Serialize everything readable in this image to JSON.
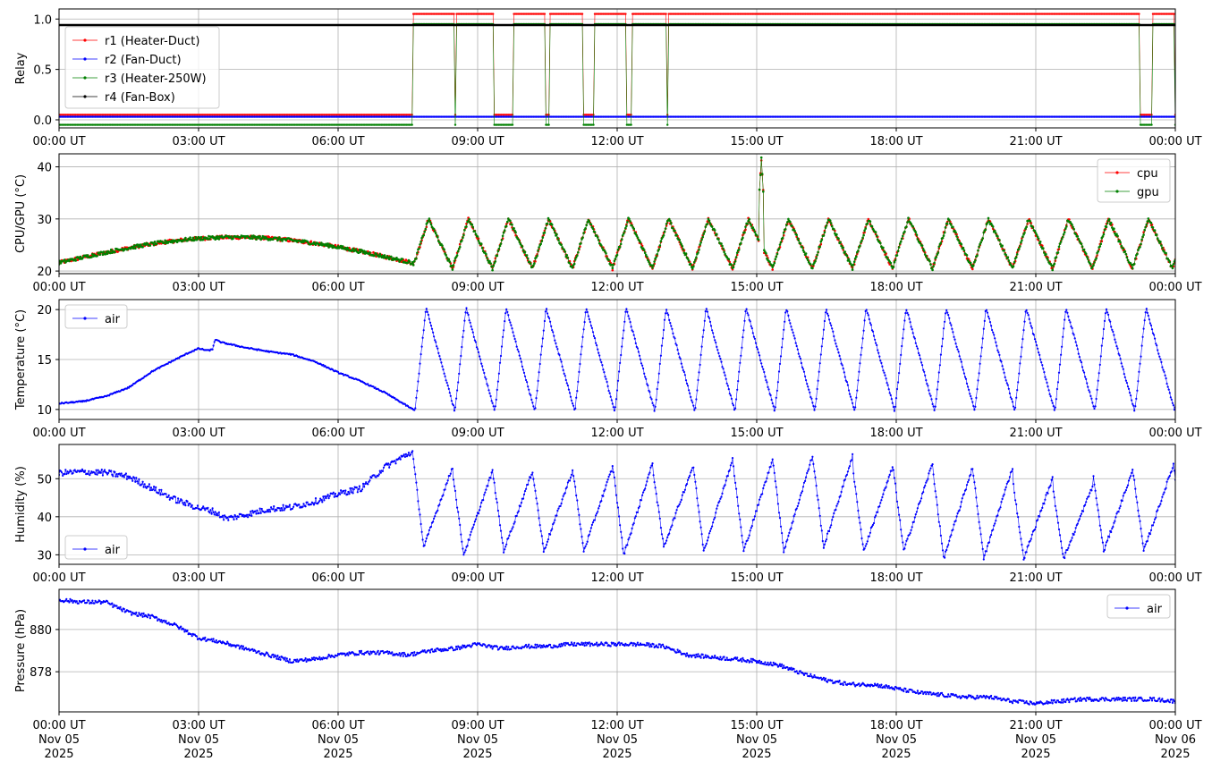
{
  "chart_data": [
    {
      "type": "line",
      "ylabel": "Relay",
      "ylim": [
        -0.08,
        1.1
      ],
      "yticks": [
        0.0,
        0.5,
        1.0
      ],
      "ytick_labels": [
        "0.0",
        "0.5",
        "1.0"
      ],
      "x_range_hours": [
        0,
        24
      ],
      "xtick_labels": [
        "00:00 UT",
        "03:00 UT",
        "06:00 UT",
        "09:00 UT",
        "12:00 UT",
        "15:00 UT",
        "18:00 UT",
        "21:00 UT",
        "00:00 UT"
      ],
      "grid": true,
      "legend_position": "upper-left",
      "relay_on_off_cycles_hours": [
        [
          7.6,
          8.5
        ],
        [
          8.55,
          9.35
        ],
        [
          9.75,
          10.45
        ],
        [
          10.55,
          11.25
        ],
        [
          11.5,
          12.2
        ],
        [
          12.3,
          13.05
        ],
        [
          13.1,
          13.95
        ],
        [
          13.95,
          14.8
        ],
        [
          14.8,
          15.6
        ],
        [
          15.6,
          16.45
        ],
        [
          16.45,
          17.3
        ],
        [
          17.3,
          18.15
        ],
        [
          18.15,
          19.05
        ],
        [
          19.05,
          19.95
        ],
        [
          19.95,
          20.85
        ],
        [
          20.85,
          21.7
        ],
        [
          21.7,
          22.5
        ],
        [
          22.5,
          23.25
        ],
        [
          23.5,
          24.0
        ]
      ],
      "series": [
        {
          "name": "r1 (Heater-Duct)",
          "color": "#ff0000",
          "off_value": 0.05,
          "on_value": 1.05
        },
        {
          "name": "r2 (Fan-Duct)",
          "color": "#0000ff",
          "off_value": 0.03,
          "on_value": 0.03
        },
        {
          "name": "r3 (Heater-250W)",
          "color": "#008000",
          "off_value": -0.05,
          "on_value": 0.95
        },
        {
          "name": "r4 (Fan-Box)",
          "color": "#000000",
          "off_value": 0.94,
          "on_value": 0.94
        }
      ]
    },
    {
      "type": "line",
      "ylabel": "CPU/GPU (°C)",
      "ylim": [
        19.5,
        42.5
      ],
      "yticks": [
        20,
        30,
        40
      ],
      "ytick_labels": [
        "20",
        "30",
        "40"
      ],
      "x_range_hours": [
        0,
        24
      ],
      "xtick_labels": [
        "00:00 UT",
        "03:00 UT",
        "06:00 UT",
        "09:00 UT",
        "12:00 UT",
        "15:00 UT",
        "18:00 UT",
        "21:00 UT",
        "00:00 UT"
      ],
      "grid": true,
      "legend_position": "upper-right",
      "series": [
        {
          "name": "cpu",
          "color": "#ff0000"
        },
        {
          "name": "gpu",
          "color": "#008000"
        }
      ],
      "profile": {
        "night_start": 21.6,
        "night_peak": 26.5,
        "night_peak_hour": 3.5,
        "night_end": 21.5,
        "cycle_min": 20.5,
        "cycle_max": 30.0,
        "spike_hour": 15.1,
        "spike_value": 41.5
      }
    },
    {
      "type": "line",
      "ylabel": "Temperature (°C)",
      "ylim": [
        9.0,
        21.0
      ],
      "yticks": [
        10,
        15,
        20
      ],
      "ytick_labels": [
        "10",
        "15",
        "20"
      ],
      "x_range_hours": [
        0,
        24
      ],
      "xtick_labels": [
        "00:00 UT",
        "03:00 UT",
        "06:00 UT",
        "09:00 UT",
        "12:00 UT",
        "15:00 UT",
        "18:00 UT",
        "21:00 UT",
        "00:00 UT"
      ],
      "grid": true,
      "legend_position": "upper-left",
      "series": [
        {
          "name": "air",
          "color": "#0000ff"
        }
      ],
      "night_points": [
        [
          0,
          10.6
        ],
        [
          0.5,
          10.8
        ],
        [
          1.0,
          11.3
        ],
        [
          1.5,
          12.2
        ],
        [
          2.0,
          13.8
        ],
        [
          2.5,
          15.0
        ],
        [
          2.8,
          15.7
        ],
        [
          3.0,
          16.1
        ],
        [
          3.2,
          15.9
        ],
        [
          3.3,
          16.0
        ],
        [
          3.35,
          17.0
        ],
        [
          3.5,
          16.7
        ],
        [
          4.0,
          16.2
        ],
        [
          4.5,
          15.8
        ],
        [
          5.0,
          15.5
        ],
        [
          5.5,
          14.8
        ],
        [
          6.0,
          13.7
        ],
        [
          6.5,
          12.8
        ],
        [
          7.0,
          11.7
        ],
        [
          7.5,
          10.3
        ],
        [
          7.65,
          9.9
        ]
      ],
      "cycle_min": 9.8,
      "cycle_max": 20.2
    },
    {
      "type": "line",
      "ylabel": "Humidity (%)",
      "ylim": [
        27.5,
        59.0
      ],
      "yticks": [
        30,
        40,
        50
      ],
      "ytick_labels": [
        "30",
        "40",
        "50"
      ],
      "x_range_hours": [
        0,
        24
      ],
      "xtick_labels": [
        "00:00 UT",
        "03:00 UT",
        "06:00 UT",
        "09:00 UT",
        "12:00 UT",
        "15:00 UT",
        "18:00 UT",
        "21:00 UT",
        "00:00 UT"
      ],
      "grid": true,
      "legend_position": "lower-left",
      "series": [
        {
          "name": "air",
          "color": "#0000ff"
        }
      ],
      "night_points": [
        [
          0,
          51.5
        ],
        [
          0.5,
          51.8
        ],
        [
          1.0,
          51.6
        ],
        [
          1.5,
          50.5
        ],
        [
          2.0,
          47.5
        ],
        [
          2.5,
          44.5
        ],
        [
          3.0,
          42.3
        ],
        [
          3.3,
          41.5
        ],
        [
          3.6,
          39.5
        ],
        [
          4.0,
          40.5
        ],
        [
          4.5,
          42.0
        ],
        [
          5.0,
          42.5
        ],
        [
          5.5,
          44.0
        ],
        [
          6.0,
          46.0
        ],
        [
          6.5,
          47.5
        ],
        [
          7.0,
          53.0
        ],
        [
          7.5,
          56.5
        ],
        [
          7.6,
          57.0
        ]
      ],
      "cycle_peaks": [
        53,
        52,
        52,
        52,
        53,
        54,
        53,
        55,
        55,
        56,
        56,
        53,
        54,
        53,
        53,
        50,
        48,
        52,
        53,
        56
      ],
      "cycle_troughs": [
        32,
        30,
        31,
        31,
        31,
        30,
        32,
        31,
        31,
        31,
        32,
        31,
        31,
        29,
        29,
        29,
        29,
        31,
        31
      ]
    },
    {
      "type": "line",
      "ylabel": "Pressure (hPa)",
      "ylim": [
        876.1,
        881.9
      ],
      "yticks": [
        878,
        880
      ],
      "ytick_labels": [
        "878",
        "880"
      ],
      "x_range_hours": [
        0,
        24
      ],
      "xtick_labels": [
        "00:00 UT\nNov 05\n2025",
        "03:00 UT\nNov 05\n2025",
        "06:00 UT\nNov 05\n2025",
        "09:00 UT\nNov 05\n2025",
        "12:00 UT\nNov 05\n2025",
        "15:00 UT\nNov 05\n2025",
        "18:00 UT\nNov 05\n2025",
        "21:00 UT\nNov 05\n2025",
        "00:00 UT\nNov 06\n2025"
      ],
      "grid": true,
      "legend_position": "upper-right",
      "series": [
        {
          "name": "air",
          "color": "#0000ff"
        }
      ],
      "points": [
        [
          0,
          881.4
        ],
        [
          0.5,
          881.3
        ],
        [
          1.0,
          881.3
        ],
        [
          1.5,
          880.8
        ],
        [
          2.0,
          880.6
        ],
        [
          2.5,
          880.2
        ],
        [
          3.0,
          879.6
        ],
        [
          3.5,
          879.4
        ],
        [
          4.0,
          879.1
        ],
        [
          4.5,
          878.8
        ],
        [
          5.0,
          878.5
        ],
        [
          5.5,
          878.6
        ],
        [
          6.0,
          878.8
        ],
        [
          6.5,
          878.9
        ],
        [
          7.0,
          878.9
        ],
        [
          7.5,
          878.8
        ],
        [
          8.0,
          879.0
        ],
        [
          8.5,
          879.1
        ],
        [
          9.0,
          879.3
        ],
        [
          9.5,
          879.1
        ],
        [
          10.0,
          879.2
        ],
        [
          10.5,
          879.2
        ],
        [
          11.0,
          879.3
        ],
        [
          11.5,
          879.3
        ],
        [
          12.0,
          879.3
        ],
        [
          12.5,
          879.3
        ],
        [
          13.0,
          879.2
        ],
        [
          13.5,
          878.8
        ],
        [
          14.0,
          878.7
        ],
        [
          14.5,
          878.6
        ],
        [
          15.0,
          878.5
        ],
        [
          15.5,
          878.3
        ],
        [
          16.0,
          877.9
        ],
        [
          16.5,
          877.6
        ],
        [
          17.0,
          877.4
        ],
        [
          17.5,
          877.4
        ],
        [
          18.0,
          877.2
        ],
        [
          18.5,
          877.0
        ],
        [
          19.0,
          876.9
        ],
        [
          19.5,
          876.8
        ],
        [
          20.0,
          876.8
        ],
        [
          20.5,
          876.6
        ],
        [
          21.0,
          876.5
        ],
        [
          21.5,
          876.6
        ],
        [
          22.0,
          876.7
        ],
        [
          22.5,
          876.7
        ],
        [
          23.0,
          876.7
        ],
        [
          23.5,
          876.7
        ],
        [
          24.0,
          876.6
        ]
      ]
    }
  ]
}
